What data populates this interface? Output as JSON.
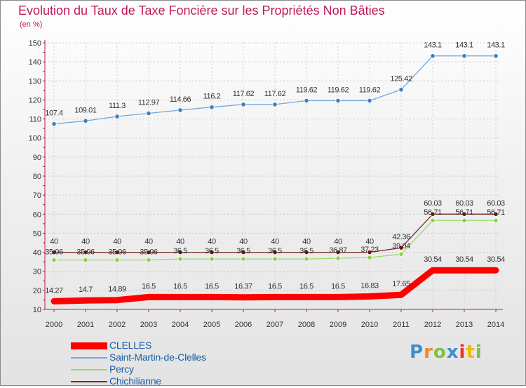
{
  "header": {
    "title": "Evolution du Taux de Taxe Foncière sur les Propriétés Non Bâties",
    "unit": "(en %)"
  },
  "logo": {
    "text": "Proxiti"
  },
  "chart_data": {
    "type": "line",
    "title": "Evolution du Taux de Taxe Foncière sur les Propriétés Non Bâties",
    "ylabel": "(en %)",
    "xlabel": "",
    "ylim": [
      10,
      150
    ],
    "yticks": [
      10,
      20,
      30,
      40,
      50,
      60,
      70,
      80,
      90,
      100,
      110,
      120,
      130,
      140,
      150
    ],
    "grid": true,
    "legend_position": "bottom-left",
    "categories": [
      "2000",
      "2001",
      "2002",
      "2003",
      "2004",
      "2005",
      "2006",
      "2007",
      "2008",
      "2009",
      "2010",
      "2011",
      "2012",
      "2013",
      "2014"
    ],
    "series": [
      {
        "name": "CLELLES",
        "color": "#ff0000",
        "values": [
          14.27,
          14.7,
          14.89,
          16.5,
          16.5,
          16.5,
          16.37,
          16.5,
          16.5,
          16.5,
          16.83,
          17.65,
          30.54,
          30.54,
          30.54
        ],
        "labels": [
          "14.27",
          "14.7",
          "14.89",
          "16.5",
          "16.5",
          "16.5",
          "16.37",
          "16.5",
          "16.5",
          "16.5",
          "16.83",
          "17.65",
          "30.54",
          "30.54",
          "30.54"
        ]
      },
      {
        "name": "Saint-Martin-de-Clelles",
        "color": "#6fa8dc",
        "values": [
          107.4,
          109.01,
          111.3,
          112.97,
          114.66,
          116.2,
          117.62,
          117.62,
          119.62,
          119.62,
          119.62,
          125.42,
          143.1,
          143.1,
          143.1
        ],
        "labels": [
          "107.4",
          "109.01",
          "111.3",
          "112.97",
          "114.66",
          "116.2",
          "117.62",
          "117.62",
          "119.62",
          "119.62",
          "119.62",
          "125.42",
          "143.1",
          "143.1",
          "143.1"
        ]
      },
      {
        "name": "Percy",
        "color": "#99d96a",
        "values": [
          35.96,
          35.96,
          35.96,
          35.96,
          36.5,
          36.5,
          36.5,
          36.5,
          36.5,
          36.87,
          37.23,
          39.04,
          56.71,
          56.71,
          56.71
        ],
        "labels": [
          "35.96",
          "35.96",
          "35.96",
          "35.96",
          "36.5",
          "36.5",
          "36.5",
          "36.5",
          "36.5",
          "36.87",
          "37.23",
          "39.04",
          "56.71",
          "56.71",
          "56.71"
        ]
      },
      {
        "name": "Chichilianne",
        "color": "#7d2a2a",
        "values": [
          40,
          40,
          40,
          40,
          40,
          40,
          40,
          40,
          40,
          40,
          40,
          42.36,
          60.03,
          60.03,
          60.03
        ],
        "labels": [
          "40",
          "40",
          "40",
          "40",
          "40",
          "40",
          "40",
          "40",
          "40",
          "40",
          "40",
          "42.36",
          "60.03",
          "60.03",
          "60.03"
        ]
      }
    ]
  }
}
